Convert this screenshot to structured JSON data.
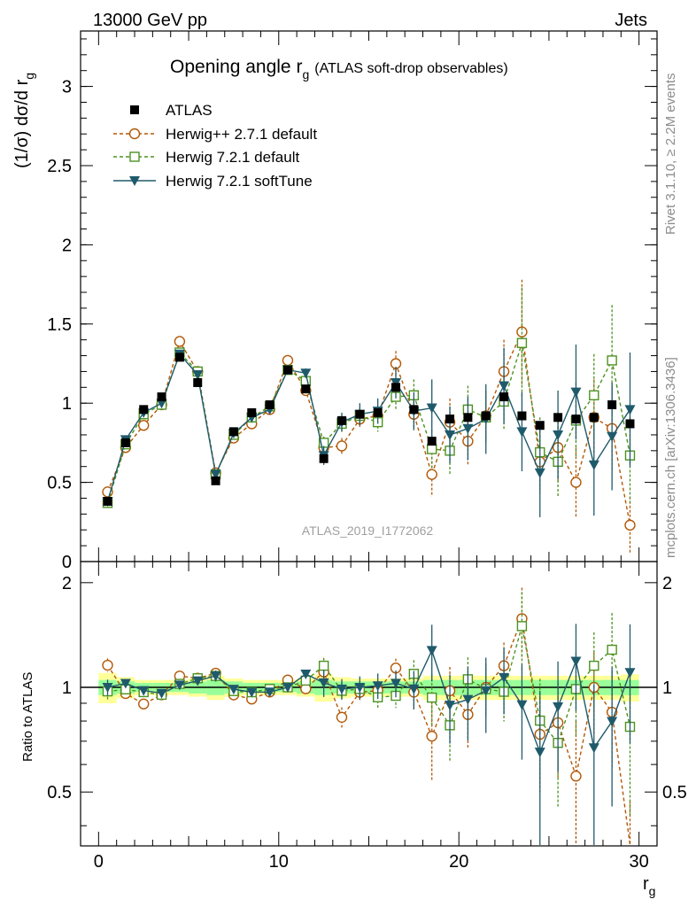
{
  "header": {
    "left": "13000 GeV pp",
    "right": "Jets"
  },
  "side_text": {
    "rivet": "Rivet 3.1.10, ≥ 2.2M events",
    "mcplots": "mcplots.cern.ch [arXiv:1306.3436]"
  },
  "colors": {
    "atlas": "#000000",
    "herwigpp": "#b35806",
    "herwig721": "#4d9221",
    "softtune": "#1f5a6b",
    "band_outer": "#ffff99",
    "band_inner": "#99ff99"
  },
  "chart_data": [
    {
      "type": "line",
      "title": "Opening angle r",
      "title_sub": "g",
      "title_suffix": "(ATLAS soft-drop observables)",
      "ylabel": "(1/σ) dσ/d r",
      "ylabel_sub": "g",
      "xlim": [
        -1,
        31
      ],
      "ylim": [
        0,
        3.35
      ],
      "yticks": [
        0,
        0.5,
        1,
        1.5,
        2,
        2.5,
        3
      ],
      "ytick_labels": [
        "0",
        "0.5",
        "1",
        "1.5",
        "2",
        "2.5",
        "3"
      ],
      "analysis_label": "ATLAS_2019_I1772062",
      "legend_position": "top-left",
      "x": [
        0.5,
        1.5,
        2.5,
        3.5,
        4.5,
        5.5,
        6.5,
        7.5,
        8.5,
        9.5,
        10.5,
        11.5,
        12.5,
        13.5,
        14.5,
        15.5,
        16.5,
        17.5,
        18.5,
        19.5,
        20.5,
        21.5,
        22.5,
        23.5,
        24.5,
        25.5,
        26.5,
        27.5,
        28.5,
        29.5
      ],
      "series": [
        {
          "name": "ATLAS",
          "style": "data",
          "values": [
            0.38,
            0.75,
            0.96,
            1.04,
            1.29,
            1.13,
            0.51,
            0.82,
            0.94,
            0.99,
            1.21,
            1.09,
            0.65,
            0.89,
            0.93,
            0.94,
            1.1,
            0.96,
            0.76,
            0.9,
            0.91,
            0.92,
            1.04,
            0.92,
            0.86,
            0.91,
            0.9,
            0.91,
            0.99,
            0.87
          ]
        },
        {
          "name": "Herwig++ 2.7.1 default",
          "style": "circle",
          "values": [
            0.44,
            0.72,
            0.86,
            0.99,
            1.39,
            1.2,
            0.56,
            0.78,
            0.87,
            0.96,
            1.27,
            1.08,
            0.72,
            0.73,
            0.9,
            0.92,
            1.25,
            0.93,
            0.55,
            0.88,
            0.76,
            0.92,
            1.2,
            1.45,
            0.63,
            0.72,
            0.5,
            0.91,
            0.84,
            0.23
          ],
          "err": [
            0.02,
            0.02,
            0.02,
            0.02,
            0.02,
            0.02,
            0.02,
            0.02,
            0.02,
            0.02,
            0.02,
            0.03,
            0.04,
            0.05,
            0.05,
            0.06,
            0.08,
            0.1,
            0.14,
            0.15,
            0.15,
            0.16,
            0.2,
            0.33,
            0.2,
            0.22,
            0.22,
            0.24,
            0.26,
            0.18
          ]
        },
        {
          "name": "Herwig 7.2.1 default",
          "style": "square",
          "values": [
            0.37,
            0.74,
            0.93,
            0.99,
            1.32,
            1.2,
            0.55,
            0.8,
            0.91,
            0.98,
            1.21,
            1.14,
            0.75,
            0.87,
            0.92,
            0.88,
            1.04,
            1.05,
            0.71,
            0.7,
            0.96,
            0.91,
            1.01,
            1.38,
            0.69,
            0.63,
            0.89,
            1.05,
            1.27,
            0.67
          ],
          "err": [
            0.02,
            0.02,
            0.02,
            0.02,
            0.02,
            0.02,
            0.02,
            0.02,
            0.02,
            0.02,
            0.02,
            0.03,
            0.04,
            0.05,
            0.05,
            0.06,
            0.08,
            0.1,
            0.12,
            0.15,
            0.15,
            0.16,
            0.18,
            0.35,
            0.22,
            0.22,
            0.24,
            0.26,
            0.35,
            0.3
          ]
        },
        {
          "name": "Herwig 7.2.1 softTune",
          "style": "triangle",
          "values": [
            0.38,
            0.77,
            0.94,
            1.0,
            1.31,
            1.18,
            0.55,
            0.81,
            0.91,
            0.96,
            1.21,
            1.19,
            0.67,
            0.88,
            0.93,
            0.95,
            1.13,
            0.95,
            0.97,
            0.8,
            0.84,
            0.9,
            1.11,
            0.82,
            0.56,
            0.8,
            1.07,
            0.61,
            0.79,
            0.96
          ],
          "err": [
            0.02,
            0.02,
            0.02,
            0.02,
            0.02,
            0.02,
            0.02,
            0.02,
            0.02,
            0.02,
            0.02,
            0.03,
            0.06,
            0.06,
            0.07,
            0.08,
            0.1,
            0.12,
            0.18,
            0.18,
            0.2,
            0.22,
            0.24,
            0.25,
            0.28,
            0.28,
            0.3,
            0.32,
            0.34,
            0.36
          ]
        }
      ]
    },
    {
      "type": "line",
      "ylabel": "Ratio to ATLAS",
      "xlabel": "r",
      "xlabel_sub": "g",
      "xlim": [
        -1,
        31
      ],
      "ylim": [
        0.35,
        2.3
      ],
      "xticks": [
        0,
        10,
        20,
        30
      ],
      "xtick_labels": [
        "0",
        "10",
        "20",
        "30"
      ],
      "yticks": [
        0.5,
        1,
        2
      ],
      "ytick_labels": [
        "0.5",
        "1",
        "2"
      ],
      "band_inner": [
        0.05,
        0.04,
        0.03,
        0.03,
        0.03,
        0.04,
        0.05,
        0.04,
        0.03,
        0.03,
        0.03,
        0.04,
        0.05,
        0.04,
        0.04,
        0.04,
        0.04,
        0.04,
        0.05,
        0.05,
        0.05,
        0.05,
        0.05,
        0.05,
        0.05,
        0.05,
        0.05,
        0.05,
        0.05,
        0.05
      ],
      "band_outer": [
        0.1,
        0.07,
        0.05,
        0.05,
        0.05,
        0.06,
        0.08,
        0.06,
        0.05,
        0.05,
        0.05,
        0.06,
        0.09,
        0.07,
        0.06,
        0.06,
        0.06,
        0.06,
        0.08,
        0.08,
        0.08,
        0.08,
        0.08,
        0.08,
        0.08,
        0.08,
        0.08,
        0.08,
        0.08,
        0.09
      ]
    }
  ]
}
